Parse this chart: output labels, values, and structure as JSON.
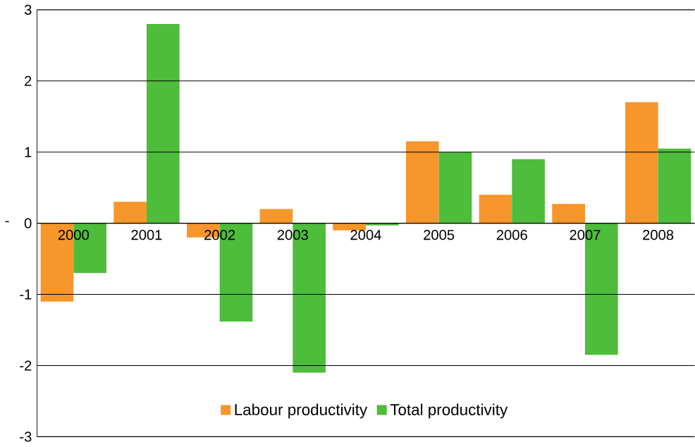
{
  "chart_data": {
    "type": "bar",
    "ylabel": "-",
    "categories": [
      "2000",
      "2001",
      "2002",
      "2003",
      "2004",
      "2005",
      "2006",
      "2007",
      "2008"
    ],
    "series": [
      {
        "name": "Labour productivity",
        "color": "#f7962b",
        "values": [
          -1.1,
          0.3,
          -0.2,
          0.2,
          -0.1,
          1.15,
          0.4,
          0.27,
          1.7
        ]
      },
      {
        "name": "Total productivity",
        "color": "#4dbd3b",
        "values": [
          -0.7,
          2.8,
          -1.38,
          -2.1,
          -0.03,
          1.0,
          0.9,
          -1.85,
          1.05
        ]
      }
    ],
    "ylim": [
      -3,
      3
    ],
    "yticks": [
      -3,
      -2,
      -1,
      0,
      1,
      2,
      3
    ],
    "grid": "y",
    "legend": "bottom"
  }
}
